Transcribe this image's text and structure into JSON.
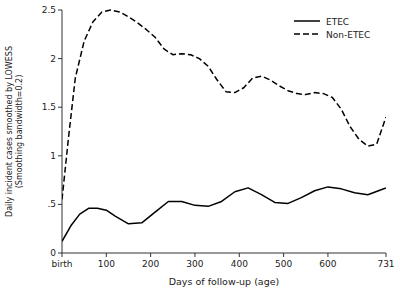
{
  "chart_data": {
    "type": "line",
    "xlabel": "Days of follow-up (age)",
    "ylabel": "Daily incident cases smoothed by LOWESS\n(Smoothing bandwidth=0.2)",
    "xlim": [
      0,
      731
    ],
    "ylim": [
      0,
      2.5
    ],
    "xticks": [
      {
        "value": 0,
        "label": "birth"
      },
      100,
      200,
      300,
      400,
      500,
      600,
      731
    ],
    "yticks": [
      0,
      {
        "value": 0.5,
        "label": ".5"
      },
      1,
      1.5,
      2,
      2.5
    ],
    "grid": false,
    "legend": "upper right",
    "series": [
      {
        "name": "ETEC",
        "color": "#000000",
        "line_style": "solid",
        "x": [
          0,
          20,
          40,
          60,
          80,
          100,
          120,
          150,
          180,
          210,
          240,
          270,
          300,
          330,
          360,
          390,
          420,
          450,
          480,
          510,
          540,
          570,
          600,
          630,
          660,
          690,
          720,
          731
        ],
        "values": [
          0.12,
          0.28,
          0.4,
          0.46,
          0.46,
          0.44,
          0.38,
          0.3,
          0.31,
          0.42,
          0.53,
          0.53,
          0.49,
          0.48,
          0.53,
          0.63,
          0.67,
          0.6,
          0.52,
          0.51,
          0.57,
          0.64,
          0.68,
          0.66,
          0.62,
          0.6,
          0.65,
          0.67
        ]
      },
      {
        "name": "Non-ETEC",
        "color": "#000000",
        "line_style": "dashed",
        "x": [
          0,
          15,
          30,
          50,
          70,
          90,
          110,
          130,
          150,
          170,
          190,
          210,
          230,
          250,
          270,
          290,
          310,
          330,
          350,
          370,
          390,
          410,
          430,
          450,
          470,
          490,
          510,
          530,
          550,
          570,
          590,
          610,
          630,
          650,
          670,
          690,
          710,
          731
        ],
        "values": [
          0.55,
          1.2,
          1.8,
          2.18,
          2.38,
          2.48,
          2.5,
          2.48,
          2.43,
          2.37,
          2.3,
          2.22,
          2.1,
          2.04,
          2.05,
          2.04,
          2.0,
          1.92,
          1.78,
          1.66,
          1.65,
          1.7,
          1.8,
          1.82,
          1.78,
          1.72,
          1.67,
          1.64,
          1.63,
          1.65,
          1.64,
          1.6,
          1.48,
          1.3,
          1.17,
          1.1,
          1.12,
          1.4
        ]
      }
    ]
  }
}
